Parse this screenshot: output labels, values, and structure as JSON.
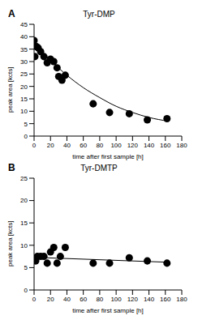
{
  "chart_data": [
    {
      "type": "scatter",
      "annotation": "A",
      "title": "Tyr-DMP",
      "x_label": "time after first sample [h]",
      "y_label": "peak area [kcts]",
      "x": [
        0,
        1,
        3,
        5,
        8,
        12,
        16,
        20,
        24,
        28,
        30,
        34,
        38,
        72,
        92,
        116,
        138,
        162
      ],
      "values": [
        38.5,
        32,
        36,
        35.5,
        34,
        32,
        29.5,
        31,
        30,
        27.5,
        24,
        22.5,
        24.5,
        13,
        9.5,
        9,
        6.5,
        7
      ],
      "fit": {
        "x": [
          0,
          20,
          40,
          60,
          80,
          100,
          120,
          140,
          164
        ],
        "values": [
          37.5,
          30.5,
          24.5,
          19.5,
          15.5,
          12,
          9.5,
          7.5,
          6
        ]
      },
      "color": "#000000",
      "marker": "circle",
      "line_style": "solid",
      "xlim": [
        0,
        180
      ],
      "xticks": [
        0,
        20,
        40,
        60,
        80,
        100,
        120,
        140,
        160,
        180
      ],
      "ylim": [
        0,
        45
      ],
      "yticks": [
        0,
        5,
        10,
        15,
        20,
        25,
        30,
        35,
        40,
        45
      ]
    },
    {
      "type": "scatter",
      "annotation": "B",
      "title": "Tyr-DMTP",
      "x_label": "time after first sample [h]",
      "y_label": "peak area [kcts]",
      "x": [
        0,
        2,
        4,
        8,
        12,
        16,
        20,
        24,
        28,
        32,
        38,
        72,
        92,
        116,
        138,
        162
      ],
      "values": [
        7,
        6.5,
        7.5,
        7.5,
        7.5,
        6,
        8.5,
        9.5,
        6,
        7.5,
        9.5,
        6,
        6,
        7.2,
        6.5,
        6
      ],
      "fit": {
        "x": [
          0,
          164
        ],
        "values": [
          7.3,
          6.2
        ]
      },
      "color": "#000000",
      "marker": "circle",
      "line_style": "solid",
      "xlim": [
        0,
        180
      ],
      "xticks": [
        0,
        20,
        40,
        60,
        80,
        100,
        120,
        140,
        160,
        180
      ],
      "ylim": [
        0,
        25
      ],
      "yticks": [
        0,
        5,
        10,
        15,
        20,
        25
      ]
    }
  ]
}
